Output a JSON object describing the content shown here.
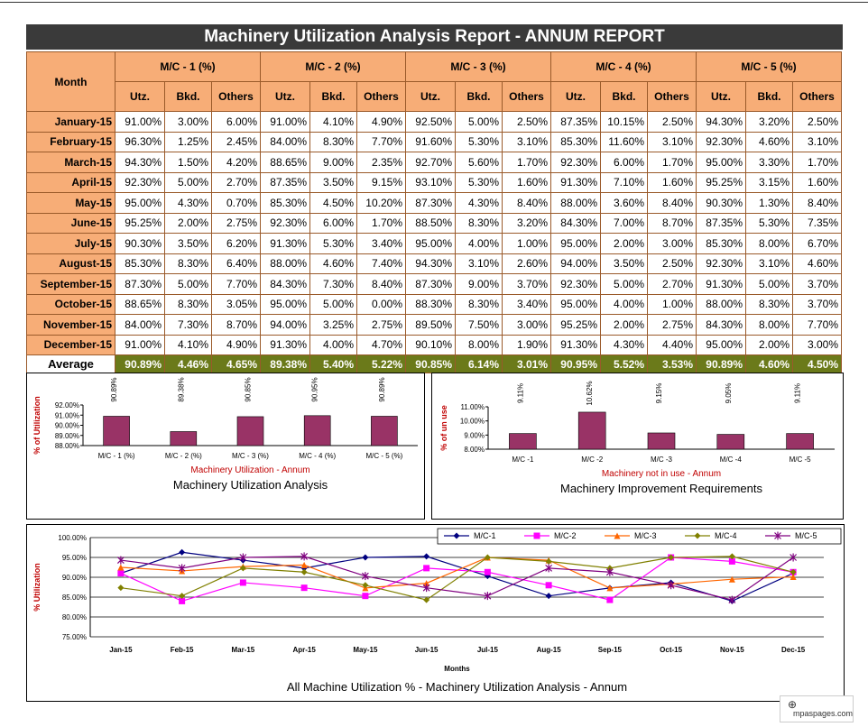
{
  "report": {
    "title": "Machinery Utilization Analysis Report - ANNUM REPORT",
    "month_header": "Month",
    "machines": [
      "M/C - 1 (%)",
      "M/C - 2 (%)",
      "M/C - 3 (%)",
      "M/C - 4 (%)",
      "M/C - 5 (%)"
    ],
    "sub_headers": [
      "Utz.",
      "Bkd.",
      "Others"
    ],
    "rows": [
      {
        "month": "January-15",
        "vals": [
          "91.00%",
          "3.00%",
          "6.00%",
          "91.00%",
          "4.10%",
          "4.90%",
          "92.50%",
          "5.00%",
          "2.50%",
          "87.35%",
          "10.15%",
          "2.50%",
          "94.30%",
          "3.20%",
          "2.50%"
        ]
      },
      {
        "month": "February-15",
        "vals": [
          "96.30%",
          "1.25%",
          "2.45%",
          "84.00%",
          "8.30%",
          "7.70%",
          "91.60%",
          "5.30%",
          "3.10%",
          "85.30%",
          "11.60%",
          "3.10%",
          "92.30%",
          "4.60%",
          "3.10%"
        ]
      },
      {
        "month": "March-15",
        "vals": [
          "94.30%",
          "1.50%",
          "4.20%",
          "88.65%",
          "9.00%",
          "2.35%",
          "92.70%",
          "5.60%",
          "1.70%",
          "92.30%",
          "6.00%",
          "1.70%",
          "95.00%",
          "3.30%",
          "1.70%"
        ]
      },
      {
        "month": "April-15",
        "vals": [
          "92.30%",
          "5.00%",
          "2.70%",
          "87.35%",
          "3.50%",
          "9.15%",
          "93.10%",
          "5.30%",
          "1.60%",
          "91.30%",
          "7.10%",
          "1.60%",
          "95.25%",
          "3.15%",
          "1.60%"
        ]
      },
      {
        "month": "May-15",
        "vals": [
          "95.00%",
          "4.30%",
          "0.70%",
          "85.30%",
          "4.50%",
          "10.20%",
          "87.30%",
          "4.30%",
          "8.40%",
          "88.00%",
          "3.60%",
          "8.40%",
          "90.30%",
          "1.30%",
          "8.40%"
        ]
      },
      {
        "month": "June-15",
        "vals": [
          "95.25%",
          "2.00%",
          "2.75%",
          "92.30%",
          "6.00%",
          "1.70%",
          "88.50%",
          "8.30%",
          "3.20%",
          "84.30%",
          "7.00%",
          "8.70%",
          "87.35%",
          "5.30%",
          "7.35%"
        ]
      },
      {
        "month": "July-15",
        "vals": [
          "90.30%",
          "3.50%",
          "6.20%",
          "91.30%",
          "5.30%",
          "3.40%",
          "95.00%",
          "4.00%",
          "1.00%",
          "95.00%",
          "2.00%",
          "3.00%",
          "85.30%",
          "8.00%",
          "6.70%"
        ]
      },
      {
        "month": "August-15",
        "vals": [
          "85.30%",
          "8.30%",
          "6.40%",
          "88.00%",
          "4.60%",
          "7.40%",
          "94.30%",
          "3.10%",
          "2.60%",
          "94.00%",
          "3.50%",
          "2.50%",
          "92.30%",
          "3.10%",
          "4.60%"
        ]
      },
      {
        "month": "September-15",
        "vals": [
          "87.30%",
          "5.00%",
          "7.70%",
          "84.30%",
          "7.30%",
          "8.40%",
          "87.30%",
          "9.00%",
          "3.70%",
          "92.30%",
          "5.00%",
          "2.70%",
          "91.30%",
          "5.00%",
          "3.70%"
        ]
      },
      {
        "month": "October-15",
        "vals": [
          "88.65%",
          "8.30%",
          "3.05%",
          "95.00%",
          "5.00%",
          "0.00%",
          "88.30%",
          "8.30%",
          "3.40%",
          "95.00%",
          "4.00%",
          "1.00%",
          "88.00%",
          "8.30%",
          "3.70%"
        ]
      },
      {
        "month": "November-15",
        "vals": [
          "84.00%",
          "7.30%",
          "8.70%",
          "94.00%",
          "3.25%",
          "2.75%",
          "89.50%",
          "7.50%",
          "3.00%",
          "95.25%",
          "2.00%",
          "2.75%",
          "84.30%",
          "8.00%",
          "7.70%"
        ]
      },
      {
        "month": "December-15",
        "vals": [
          "91.00%",
          "4.10%",
          "4.90%",
          "91.30%",
          "4.00%",
          "4.70%",
          "90.10%",
          "8.00%",
          "1.90%",
          "91.30%",
          "4.30%",
          "4.40%",
          "95.00%",
          "2.00%",
          "3.00%"
        ]
      }
    ],
    "average": {
      "label": "Average",
      "vals": [
        "90.89%",
        "4.46%",
        "4.65%",
        "89.38%",
        "5.40%",
        "5.22%",
        "90.85%",
        "6.14%",
        "3.01%",
        "90.95%",
        "5.52%",
        "3.53%",
        "90.89%",
        "4.60%",
        "4.50%"
      ]
    }
  },
  "colors": {
    "bar": "#993366",
    "header": "#f7ad77",
    "avg": "#6b7a1a",
    "title_bg": "#3a3a3a"
  },
  "chart_data": [
    {
      "type": "bar",
      "title": "Machinery Utilization Analysis",
      "xlabel": "Machinery Utilization - Annum",
      "ylabel": "% of Utilization",
      "categories": [
        "M/C - 1 (%)",
        "M/C - 2 (%)",
        "M/C - 3 (%)",
        "M/C - 4 (%)",
        "M/C - 5 (%)"
      ],
      "values": [
        90.89,
        89.38,
        90.85,
        90.95,
        90.89
      ],
      "labels": [
        "90.89%",
        "89.38%",
        "90.85%",
        "90.95%",
        "90.89%"
      ],
      "ylim": [
        88,
        92
      ],
      "yticks": [
        "88.00%",
        "89.00%",
        "90.00%",
        "91.00%",
        "92.00%"
      ]
    },
    {
      "type": "bar",
      "title": "Machinery Improvement Requirements",
      "xlabel": "Machinery not in use - Annum",
      "ylabel": "% of un use",
      "categories": [
        "M/C -1",
        "M/C -2",
        "M/C -3",
        "M/C -4",
        "M/C -5"
      ],
      "values": [
        9.11,
        10.62,
        9.15,
        9.05,
        9.11
      ],
      "labels": [
        "9.11%",
        "10.62%",
        "9.15%",
        "9.05%",
        "9.11%"
      ],
      "ylim": [
        8,
        11
      ],
      "yticks": [
        "8.00%",
        "9.00%",
        "10.00%",
        "11.00%"
      ]
    },
    {
      "type": "line",
      "title": "All Machine Utilization % - Machinery Utilization Analysis - Annum",
      "xlabel": "Months",
      "ylabel": "% Utilization",
      "categories": [
        "Jan-15",
        "Feb-15",
        "Mar-15",
        "Apr-15",
        "May-15",
        "Jun-15",
        "Jul-15",
        "Aug-15",
        "Sep-15",
        "Oct-15",
        "Nov-15",
        "Dec-15"
      ],
      "ylim": [
        75,
        100
      ],
      "yticks": [
        "75.00%",
        "80.00%",
        "85.00%",
        "90.00%",
        "95.00%",
        "100.00%"
      ],
      "legend": "top-right",
      "series": [
        {
          "name": "M/C-1",
          "color": "#000080",
          "marker": "diamond",
          "values": [
            91.0,
            96.3,
            94.3,
            92.3,
            95.0,
            95.25,
            90.3,
            85.3,
            87.3,
            88.65,
            84.0,
            91.0
          ]
        },
        {
          "name": "M/C-2",
          "color": "#ff00ff",
          "marker": "square",
          "values": [
            91.0,
            84.0,
            88.65,
            87.35,
            85.3,
            92.3,
            91.3,
            88.0,
            84.3,
            95.0,
            94.0,
            91.3
          ]
        },
        {
          "name": "M/C-3",
          "color": "#ff6600",
          "marker": "triangle",
          "values": [
            92.5,
            91.6,
            92.7,
            93.1,
            87.3,
            88.5,
            95.0,
            94.3,
            87.3,
            88.3,
            89.5,
            90.1
          ]
        },
        {
          "name": "M/C-4",
          "color": "#808000",
          "marker": "diamond",
          "values": [
            87.35,
            85.3,
            92.3,
            91.3,
            88.0,
            84.3,
            95.0,
            94.0,
            92.3,
            95.0,
            95.25,
            91.3
          ]
        },
        {
          "name": "M/C-5",
          "color": "#800080",
          "marker": "star",
          "values": [
            94.3,
            92.3,
            95.0,
            95.25,
            90.3,
            87.35,
            85.3,
            92.3,
            91.3,
            88.0,
            84.3,
            95.0
          ]
        }
      ]
    }
  ],
  "watermark": "mpaspages.com"
}
